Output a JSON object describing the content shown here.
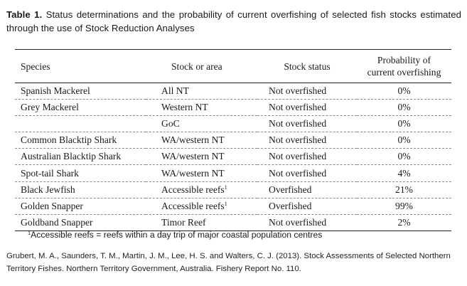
{
  "caption": {
    "lead": "Table 1.",
    "text": " Status determinations and the probability of current overfishing of selected fish stocks estimated through the use of Stock Reduction Analyses"
  },
  "table": {
    "headers": {
      "species": "Species",
      "area": "Stock or area",
      "status": "Stock status",
      "prob_line1": "Probability of",
      "prob_line2": "current overfishing"
    },
    "rows": [
      {
        "species": "Spanish Mackerel",
        "area": "All NT",
        "area_note": "",
        "status": "Not overfished",
        "probability": "0%"
      },
      {
        "species": "Grey Mackerel",
        "area": "Western NT",
        "area_note": "",
        "status": "Not overfished",
        "probability": "0%"
      },
      {
        "species": "",
        "area": "GoC",
        "area_note": "",
        "status": "Not overfished",
        "probability": "0%"
      },
      {
        "species": "Common Blacktip Shark",
        "area": "WA/western NT",
        "area_note": "",
        "status": "Not overfished",
        "probability": "0%"
      },
      {
        "species": "Australian Blacktip Shark",
        "area": "WA/western NT",
        "area_note": "",
        "status": "Not overfished",
        "probability": "0%"
      },
      {
        "species": "Spot-tail Shark",
        "area": "WA/western NT",
        "area_note": "",
        "status": "Not overfished",
        "probability": "4%"
      },
      {
        "species": "Black Jewfish",
        "area": "Accessible reefs",
        "area_note": "1",
        "status": "Overfished",
        "probability": "21%"
      },
      {
        "species": "Golden Snapper",
        "area": "Accessible reefs",
        "area_note": "1",
        "status": "Overfished",
        "probability": "99%"
      },
      {
        "species": "Goldband Snapper",
        "area": "Timor Reef",
        "area_note": "",
        "status": "Not overfished",
        "probability": "2%"
      }
    ]
  },
  "footnote": {
    "marker": "1",
    "text": "Accessible reefs = reefs within a day trip of major coastal population centres"
  },
  "reference": "Grubert, M. A., Saunders, T. M., Martin, J. M., Lee, H. S. and Walters, C. J. (2013). Stock Assessments of Selected Northern Territory Fishes. Northern Territory Government, Australia. Fishery Report No. 110."
}
